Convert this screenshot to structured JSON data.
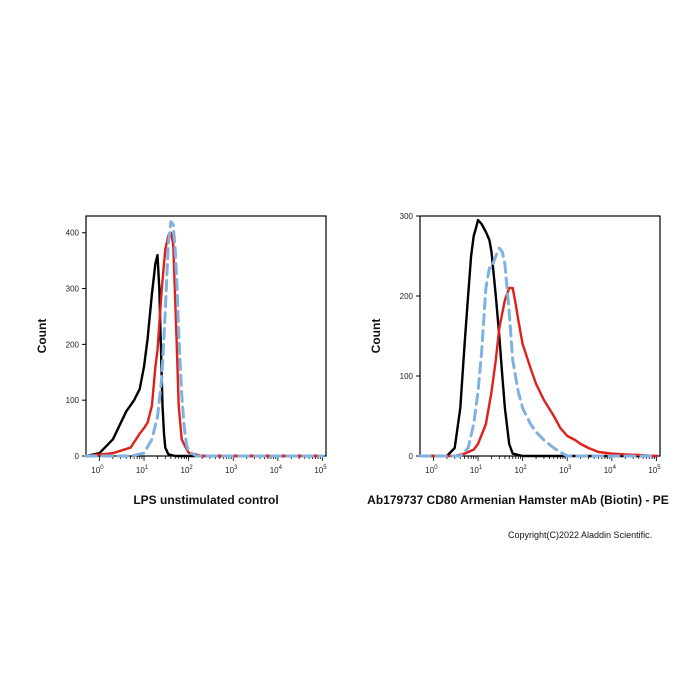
{
  "footer": {
    "copyright": "Copyright(C)2022 Aladdin Scientific."
  },
  "colors": {
    "black": "#000000",
    "red": "#e0201b",
    "blue": "#7fb2e0",
    "axis": "#000000"
  },
  "chart_data": [
    {
      "type": "line",
      "title": "",
      "xlabel": "LPS unstimulated control",
      "ylabel": "Count",
      "xscale": "log",
      "xlim": [
        0.5,
        120000
      ],
      "ylim": [
        0,
        430
      ],
      "yticks": [
        0,
        100,
        200,
        300,
        400
      ],
      "xticks": [
        {
          "base": "10",
          "exp": "0"
        },
        {
          "base": "10",
          "exp": "1"
        },
        {
          "base": "10",
          "exp": "2"
        },
        {
          "base": "10",
          "exp": "3"
        },
        {
          "base": "10",
          "exp": "4"
        },
        {
          "base": "10",
          "exp": "5"
        }
      ],
      "grid": false,
      "series": [
        {
          "color": "#000000",
          "style": "solid",
          "x": [
            0.5,
            1,
            2,
            4,
            6,
            8,
            10,
            12,
            15,
            18,
            20,
            22,
            24,
            26,
            28,
            30,
            35,
            50,
            100,
            1000,
            100000
          ],
          "y": [
            0,
            5,
            30,
            80,
            100,
            120,
            160,
            210,
            290,
            345,
            360,
            300,
            190,
            90,
            40,
            15,
            3,
            0,
            0,
            0,
            0
          ]
        },
        {
          "color": "#e0201b",
          "style": "solid",
          "x": [
            0.5,
            2,
            5,
            8,
            10,
            12,
            15,
            18,
            20,
            25,
            30,
            35,
            40,
            45,
            50,
            55,
            60,
            70,
            80,
            100,
            200,
            1000,
            100000
          ],
          "y": [
            0,
            5,
            15,
            40,
            50,
            60,
            90,
            160,
            190,
            300,
            370,
            395,
            400,
            380,
            280,
            180,
            90,
            30,
            20,
            6,
            0,
            0,
            0
          ]
        },
        {
          "color": "#7fb2e0",
          "style": "dashed",
          "x": [
            0.5,
            5,
            10,
            15,
            20,
            25,
            30,
            35,
            40,
            45,
            50,
            55,
            60,
            70,
            80,
            90,
            100,
            150,
            1000,
            100000
          ],
          "y": [
            0,
            0,
            5,
            30,
            70,
            140,
            260,
            380,
            420,
            415,
            370,
            300,
            220,
            110,
            50,
            20,
            8,
            0,
            0,
            0
          ]
        }
      ]
    },
    {
      "type": "line",
      "title": "",
      "xlabel": "Ab179737 CD80 Armenian Hamster mAb (Biotin) - PE",
      "ylabel": "Count",
      "xscale": "log",
      "xlim": [
        0.5,
        120000
      ],
      "ylim": [
        0,
        300
      ],
      "yticks": [
        0,
        100,
        200,
        300
      ],
      "xticks": [
        {
          "base": "10",
          "exp": "0"
        },
        {
          "base": "10",
          "exp": "1"
        },
        {
          "base": "10",
          "exp": "2"
        },
        {
          "base": "10",
          "exp": "3"
        },
        {
          "base": "10",
          "exp": "4"
        },
        {
          "base": "10",
          "exp": "5"
        }
      ],
      "grid": false,
      "series": [
        {
          "color": "#000000",
          "style": "solid",
          "x": [
            0.5,
            2,
            3,
            4,
            5,
            6,
            7,
            8,
            9,
            10,
            12,
            15,
            18,
            20,
            25,
            30,
            35,
            40,
            50,
            60,
            100,
            1000,
            100000
          ],
          "y": [
            0,
            0,
            10,
            60,
            140,
            200,
            250,
            275,
            285,
            295,
            290,
            280,
            270,
            255,
            200,
            150,
            100,
            60,
            15,
            3,
            0,
            0,
            0
          ]
        },
        {
          "color": "#e0201b",
          "style": "solid",
          "x": [
            0.5,
            3,
            5,
            8,
            10,
            15,
            20,
            25,
            30,
            40,
            50,
            60,
            70,
            80,
            100,
            150,
            200,
            300,
            500,
            700,
            1000,
            1500,
            2000,
            3000,
            5000,
            10000,
            20000,
            50000,
            100000
          ],
          "y": [
            0,
            0,
            3,
            8,
            15,
            40,
            80,
            120,
            160,
            195,
            210,
            210,
            190,
            170,
            140,
            110,
            90,
            70,
            50,
            35,
            25,
            20,
            15,
            10,
            5,
            3,
            2,
            1,
            0
          ]
        },
        {
          "color": "#7fb2e0",
          "style": "dashed",
          "x": [
            0.5,
            4,
            6,
            8,
            10,
            12,
            15,
            18,
            20,
            25,
            30,
            35,
            40,
            50,
            60,
            80,
            100,
            150,
            200,
            300,
            500,
            800,
            1000,
            100000
          ],
          "y": [
            0,
            0,
            10,
            40,
            80,
            130,
            210,
            235,
            235,
            250,
            260,
            255,
            240,
            180,
            120,
            80,
            60,
            40,
            30,
            20,
            10,
            3,
            0,
            0
          ]
        }
      ]
    }
  ]
}
